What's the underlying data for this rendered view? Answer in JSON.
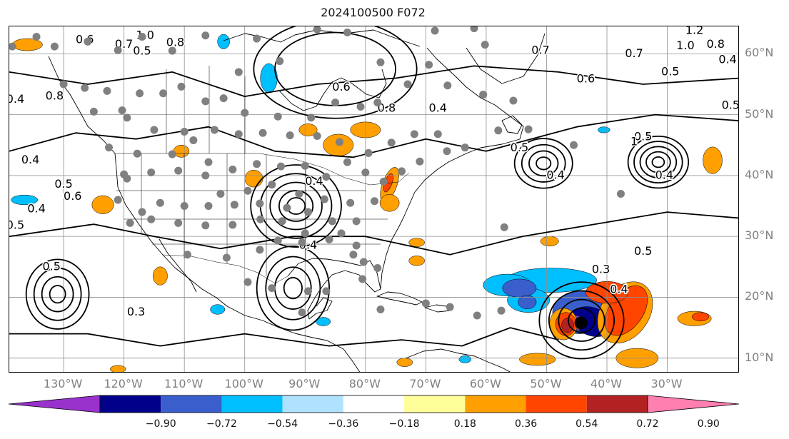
{
  "title": "2024100500 F072",
  "map": {
    "lon_range": [
      -139,
      -18
    ],
    "lat_range": [
      7.5,
      64.5
    ],
    "lon_ticks": [
      {
        "lon": -130,
        "label": "130°W"
      },
      {
        "lon": -120,
        "label": "120°W"
      },
      {
        "lon": -110,
        "label": "110°W"
      },
      {
        "lon": -100,
        "label": "100°W"
      },
      {
        "lon": -90,
        "label": "90°W"
      },
      {
        "lon": -80,
        "label": "80°W"
      },
      {
        "lon": -70,
        "label": "70°W"
      },
      {
        "lon": -60,
        "label": "60°W"
      },
      {
        "lon": -50,
        "label": "50°W"
      },
      {
        "lon": -40,
        "label": "40°W"
      },
      {
        "lon": -30,
        "label": "30°W"
      }
    ],
    "lat_ticks": [
      {
        "lat": 60,
        "label": "60°N"
      },
      {
        "lat": 50,
        "label": "50°N"
      },
      {
        "lat": 40,
        "label": "40°N"
      },
      {
        "lat": 30,
        "label": "30°N"
      },
      {
        "lat": 20,
        "label": "20°N"
      },
      {
        "lat": 10,
        "label": "10°N"
      }
    ],
    "gridlines": true,
    "storm_center": {
      "lon": -44.3,
      "lat": 15.8,
      "color": "#000000"
    },
    "station_color": "#808080",
    "stations": [
      [
        -138.5,
        61.2
      ],
      [
        -134.5,
        62.8
      ],
      [
        -131.5,
        61.2
      ],
      [
        -126.0,
        62.0
      ],
      [
        -121.0,
        60.6
      ],
      [
        -117.0,
        62.8
      ],
      [
        -112.0,
        60.5
      ],
      [
        -106.5,
        63.0
      ],
      [
        -101.0,
        57.0
      ],
      [
        -98.0,
        62.5
      ],
      [
        -94.2,
        58.8
      ],
      [
        -88.0,
        64.0
      ],
      [
        -83.0,
        63.5
      ],
      [
        -77.5,
        58.6
      ],
      [
        -69.5,
        58.2
      ],
      [
        -68.5,
        63.8
      ],
      [
        -62.0,
        64.2
      ],
      [
        -60.2,
        61.5
      ],
      [
        -55.5,
        52.3
      ],
      [
        -60.5,
        53.3
      ],
      [
        -66.4,
        54.8
      ],
      [
        -73.0,
        55.0
      ],
      [
        -78.0,
        52.0
      ],
      [
        -80.8,
        51.3
      ],
      [
        -85.0,
        52.0
      ],
      [
        -89.0,
        49.5
      ],
      [
        -94.5,
        49.7
      ],
      [
        -100.0,
        50.3
      ],
      [
        -103.5,
        52.7
      ],
      [
        -106.5,
        52.2
      ],
      [
        -110.5,
        54.6
      ],
      [
        -113.5,
        53.5
      ],
      [
        -117.4,
        53.5
      ],
      [
        -120.3,
        50.7
      ],
      [
        -122.8,
        53.9
      ],
      [
        -126.5,
        54.4
      ],
      [
        -130.0,
        55.0
      ],
      [
        -125.0,
        50.5
      ],
      [
        -119.5,
        49.5
      ],
      [
        -115.0,
        47.5
      ],
      [
        -110.0,
        47.2
      ],
      [
        -105.0,
        47.5
      ],
      [
        -101.0,
        46.8
      ],
      [
        -97.0,
        47.0
      ],
      [
        -92.5,
        46.6
      ],
      [
        -88.0,
        46.5
      ],
      [
        -84.3,
        45.5
      ],
      [
        -79.5,
        43.7
      ],
      [
        -75.7,
        45.4
      ],
      [
        -71.9,
        46.8
      ],
      [
        -68.0,
        46.8
      ],
      [
        -66.5,
        44.0
      ],
      [
        -63.5,
        44.6
      ],
      [
        -58.0,
        47.4
      ],
      [
        -53.0,
        47.6
      ],
      [
        -45.5,
        45.0
      ],
      [
        -37.7,
        37.0
      ],
      [
        -57.0,
        31.5
      ],
      [
        -122.5,
        44.6
      ],
      [
        -120.0,
        40.2
      ],
      [
        -117.8,
        43.6
      ],
      [
        -112.0,
        43.5
      ],
      [
        -108.5,
        45.8
      ],
      [
        -106.0,
        42.2
      ],
      [
        -102.0,
        41.0
      ],
      [
        -98.0,
        41.9
      ],
      [
        -94.0,
        41.5
      ],
      [
        -90.0,
        41.6
      ],
      [
        -86.5,
        39.8
      ],
      [
        -83.0,
        42.2
      ],
      [
        -80.0,
        40.5
      ],
      [
        -77.0,
        39.0
      ],
      [
        -74.0,
        40.7
      ],
      [
        -71.0,
        42.3
      ],
      [
        -119.5,
        39.5
      ],
      [
        -115.5,
        40.5
      ],
      [
        -111.0,
        40.8
      ],
      [
        -106.5,
        40.0
      ],
      [
        -104.0,
        37.0
      ],
      [
        -99.5,
        37.5
      ],
      [
        -95.5,
        38.5
      ],
      [
        -91.0,
        37.0
      ],
      [
        -86.8,
        36.1
      ],
      [
        -82.5,
        35.5
      ],
      [
        -78.5,
        35.8
      ],
      [
        -121.0,
        36.0
      ],
      [
        -117.0,
        34.0
      ],
      [
        -114.0,
        35.5
      ],
      [
        -110.0,
        35.0
      ],
      [
        -106.0,
        35.0
      ],
      [
        -101.7,
        35.2
      ],
      [
        -97.5,
        35.4
      ],
      [
        -93.0,
        34.7
      ],
      [
        -89.5,
        34.0
      ],
      [
        -85.5,
        32.5
      ],
      [
        -81.5,
        32.5
      ],
      [
        -119.0,
        32.2
      ],
      [
        -115.5,
        32.8
      ],
      [
        -111.0,
        32.2
      ],
      [
        -106.5,
        31.8
      ],
      [
        -102.0,
        31.9
      ],
      [
        -97.4,
        32.8
      ],
      [
        -93.8,
        32.5
      ],
      [
        -90.0,
        30.5
      ],
      [
        -84.0,
        30.5
      ],
      [
        -81.5,
        28.5
      ],
      [
        -97.5,
        27.8
      ],
      [
        -94.5,
        29.3
      ],
      [
        -90.5,
        29.0
      ],
      [
        -86.0,
        29.5
      ],
      [
        -80.3,
        25.8
      ],
      [
        -82.0,
        27.0
      ],
      [
        -103.0,
        26.5
      ],
      [
        -109.5,
        27.0
      ],
      [
        -99.5,
        22.5
      ],
      [
        -95.5,
        21.5
      ],
      [
        -89.5,
        21.0
      ],
      [
        -78.0,
        24.8
      ],
      [
        -77.5,
        18.0
      ],
      [
        -70.0,
        19.0
      ],
      [
        -66.0,
        18.4
      ],
      [
        -61.5,
        17.0
      ],
      [
        -57.5,
        17.8
      ],
      [
        -80.5,
        23.0
      ],
      [
        -90.5,
        17.5
      ],
      [
        -86.5,
        21.0
      ]
    ],
    "shading": [
      {
        "lon": -49.2,
        "lat": 22.8,
        "rx": 7.5,
        "ry": 2.0,
        "rot": 0,
        "fill": "#00bfff"
      },
      {
        "lon": -56.5,
        "lat": 22.0,
        "rx": 4.0,
        "ry": 1.8,
        "rot": 0,
        "fill": "#00bfff"
      },
      {
        "lon": -53.0,
        "lat": 19.5,
        "rx": 3.5,
        "ry": 2.0,
        "rot": 0,
        "fill": "#00bfff"
      },
      {
        "lon": -54.5,
        "lat": 21.5,
        "rx": 2.8,
        "ry": 1.5,
        "rot": 0,
        "fill": "#3a5fcd"
      },
      {
        "lon": -53.2,
        "lat": 19.2,
        "rx": 1.5,
        "ry": 1.1,
        "rot": 0,
        "fill": "#3a5fcd"
      },
      {
        "lon": -44.5,
        "lat": 17.5,
        "rx": 4.5,
        "ry": 3.5,
        "rot": 0,
        "fill": "#3a5fcd"
      },
      {
        "lon": -42.5,
        "lat": 16.0,
        "rx": 3.5,
        "ry": 2.3,
        "rot": 20,
        "fill": "#00008b"
      },
      {
        "lon": -45.2,
        "lat": 15.8,
        "rx": 1.8,
        "ry": 1.2,
        "rot": 0,
        "fill": "#8b3fd0"
      },
      {
        "lon": -47.2,
        "lat": 15.6,
        "rx": 2.3,
        "ry": 2.6,
        "rot": 0,
        "fill": "#ff9f00"
      },
      {
        "lon": -46.8,
        "lat": 15.6,
        "rx": 1.7,
        "ry": 1.9,
        "rot": 0,
        "fill": "#ff4500"
      },
      {
        "lon": -46.5,
        "lat": 15.4,
        "rx": 1.0,
        "ry": 1.2,
        "rot": 0,
        "fill": "#b22222"
      },
      {
        "lon": -37.0,
        "lat": 17.5,
        "rx": 4.0,
        "ry": 5.5,
        "rot": 35,
        "fill": "#ff9f00"
      },
      {
        "lon": -36.8,
        "lat": 17.8,
        "rx": 2.8,
        "ry": 4.6,
        "rot": 35,
        "fill": "#ff4500"
      },
      {
        "lon": -40.0,
        "lat": 20.8,
        "rx": 3.5,
        "ry": 1.8,
        "rot": 0,
        "fill": "#ff4500"
      },
      {
        "lon": -35.0,
        "lat": 10.0,
        "rx": 3.5,
        "ry": 1.6,
        "rot": 0,
        "fill": "#ff9f00"
      },
      {
        "lon": -51.5,
        "lat": 9.8,
        "rx": 3.0,
        "ry": 1.0,
        "rot": 0,
        "fill": "#ff9f00"
      },
      {
        "lon": -25.5,
        "lat": 16.5,
        "rx": 2.8,
        "ry": 1.2,
        "rot": 0,
        "fill": "#ff9f00"
      },
      {
        "lon": -24.5,
        "lat": 16.8,
        "rx": 1.4,
        "ry": 0.7,
        "rot": 0,
        "fill": "#ff4500"
      },
      {
        "lon": -22.5,
        "lat": 42.5,
        "rx": 1.6,
        "ry": 2.2,
        "rot": 0,
        "fill": "#ff9f00"
      },
      {
        "lon": -49.5,
        "lat": 29.2,
        "rx": 1.5,
        "ry": 0.8,
        "rot": 0,
        "fill": "#ff9f00"
      },
      {
        "lon": -71.5,
        "lat": 29.0,
        "rx": 1.3,
        "ry": 0.7,
        "rot": 0,
        "fill": "#ff9f00"
      },
      {
        "lon": -71.5,
        "lat": 26.0,
        "rx": 1.3,
        "ry": 0.8,
        "rot": 0,
        "fill": "#ff9f00"
      },
      {
        "lon": -80.0,
        "lat": 47.5,
        "rx": 2.5,
        "ry": 1.3,
        "rot": 0,
        "fill": "#ff9f00"
      },
      {
        "lon": -84.5,
        "lat": 45.0,
        "rx": 2.5,
        "ry": 1.8,
        "rot": 0,
        "fill": "#ff9f00"
      },
      {
        "lon": -89.5,
        "lat": 47.5,
        "rx": 1.5,
        "ry": 1.0,
        "rot": 0,
        "fill": "#ff9f00"
      },
      {
        "lon": -76.0,
        "lat": 38.5,
        "rx": 1.2,
        "ry": 3.0,
        "rot": 20,
        "fill": "#ff9f00"
      },
      {
        "lon": -76.2,
        "lat": 38.8,
        "rx": 0.6,
        "ry": 1.6,
        "rot": 20,
        "fill": "#ff4500"
      },
      {
        "lon": -76.0,
        "lat": 35.5,
        "rx": 1.6,
        "ry": 1.4,
        "rot": 0,
        "fill": "#ff9f00"
      },
      {
        "lon": -98.5,
        "lat": 39.5,
        "rx": 1.5,
        "ry": 1.4,
        "rot": 0,
        "fill": "#ff9f00"
      },
      {
        "lon": -110.5,
        "lat": 44.0,
        "rx": 1.3,
        "ry": 1.0,
        "rot": 0,
        "fill": "#ff9f00"
      },
      {
        "lon": -123.5,
        "lat": 35.2,
        "rx": 1.8,
        "ry": 1.5,
        "rot": 0,
        "fill": "#ff9f00"
      },
      {
        "lon": -114.0,
        "lat": 23.5,
        "rx": 1.2,
        "ry": 1.5,
        "rot": 0,
        "fill": "#ff9f00"
      },
      {
        "lon": -136.0,
        "lat": 61.5,
        "rx": 2.5,
        "ry": 1.0,
        "rot": 0,
        "fill": "#ff9f00"
      },
      {
        "lon": -121.0,
        "lat": 8.2,
        "rx": 1.3,
        "ry": 0.6,
        "rot": 0,
        "fill": "#ff9f00"
      },
      {
        "lon": -73.5,
        "lat": 9.3,
        "rx": 1.3,
        "ry": 0.7,
        "rot": 0,
        "fill": "#ff9f00"
      },
      {
        "lon": -96.0,
        "lat": 56.0,
        "rx": 1.4,
        "ry": 2.4,
        "rot": 0,
        "fill": "#00bfff"
      },
      {
        "lon": -103.5,
        "lat": 62.0,
        "rx": 1.0,
        "ry": 1.2,
        "rot": 0,
        "fill": "#00bfff"
      },
      {
        "lon": -136.5,
        "lat": 36.0,
        "rx": 2.2,
        "ry": 0.8,
        "rot": 0,
        "fill": "#00bfff"
      },
      {
        "lon": -63.5,
        "lat": 9.8,
        "rx": 1.0,
        "ry": 0.6,
        "rot": 0,
        "fill": "#00bfff"
      },
      {
        "lon": -104.5,
        "lat": 18.0,
        "rx": 1.2,
        "ry": 0.8,
        "rot": 0,
        "fill": "#00bfff"
      },
      {
        "lon": -87.0,
        "lat": 16.0,
        "rx": 1.2,
        "ry": 0.7,
        "rot": 0,
        "fill": "#00bfff"
      },
      {
        "lon": -40.5,
        "lat": 47.5,
        "rx": 1.0,
        "ry": 0.5,
        "rot": 0,
        "fill": "#00bfff"
      }
    ],
    "contours": [
      {
        "lon": -44.2,
        "lat": 16.2,
        "radii_deg": [
          2.2,
          3.8,
          5.4,
          7.0
        ],
        "aspect": 0.9
      },
      {
        "lon": -91.5,
        "lat": 35.0,
        "radii_deg": [
          1.5,
          2.8,
          4.3,
          5.9,
          7.5
        ],
        "aspect": 0.9
      },
      {
        "lon": -92.0,
        "lat": 21.5,
        "radii_deg": [
          1.5,
          3.0,
          4.5,
          6.0
        ],
        "aspect": 1.15
      },
      {
        "lon": -131.0,
        "lat": 20.5,
        "radii_deg": [
          1.3,
          2.6,
          3.9,
          5.2
        ],
        "aspect": 1.1
      },
      {
        "lon": -50.5,
        "lat": 42.0,
        "radii_deg": [
          1.2,
          2.4,
          3.6,
          4.8
        ],
        "aspect": 0.85
      },
      {
        "lon": -31.5,
        "lat": 42.2,
        "radii_deg": [
          1.0,
          2.0,
          3.0,
          4.0,
          5.0
        ],
        "aspect": 0.85
      },
      {
        "lon": -85.0,
        "lat": 57.5,
        "radii_deg": [
          10.0,
          13.5
        ],
        "aspect": 0.6
      }
    ],
    "contour_labels": [
      {
        "lon": -116.5,
        "lat": 63.0,
        "text": "1.0"
      },
      {
        "lon": -120.0,
        "lat": 61.5,
        "text": "0.7"
      },
      {
        "lon": -111.5,
        "lat": 61.8,
        "text": "0.8"
      },
      {
        "lon": -117.0,
        "lat": 60.4,
        "text": "0.5"
      },
      {
        "lon": -126.5,
        "lat": 62.3,
        "text": "0.6"
      },
      {
        "lon": -138.0,
        "lat": 52.5,
        "text": "0.4"
      },
      {
        "lon": -131.5,
        "lat": 53.0,
        "text": "0.8"
      },
      {
        "lon": -135.5,
        "lat": 42.5,
        "text": "0.4"
      },
      {
        "lon": -130.0,
        "lat": 38.5,
        "text": "0.5"
      },
      {
        "lon": -134.5,
        "lat": 34.5,
        "text": "0.4"
      },
      {
        "lon": -138.0,
        "lat": 31.8,
        "text": "0.5"
      },
      {
        "lon": -128.5,
        "lat": 36.5,
        "text": "0.6"
      },
      {
        "lon": -132.0,
        "lat": 25.0,
        "text": "0.5"
      },
      {
        "lon": -118.0,
        "lat": 17.5,
        "text": "0.3"
      },
      {
        "lon": -88.5,
        "lat": 39.0,
        "text": "0.4"
      },
      {
        "lon": -89.5,
        "lat": 28.5,
        "text": "0.4"
      },
      {
        "lon": -84.0,
        "lat": 54.5,
        "text": "0.6"
      },
      {
        "lon": -76.5,
        "lat": 51.0,
        "text": "0.8"
      },
      {
        "lon": -68.0,
        "lat": 51.0,
        "text": "0.4"
      },
      {
        "lon": -51.0,
        "lat": 60.5,
        "text": "0.7"
      },
      {
        "lon": -43.5,
        "lat": 55.8,
        "text": "0.6"
      },
      {
        "lon": -35.5,
        "lat": 60.0,
        "text": "0.7"
      },
      {
        "lon": -27.0,
        "lat": 61.3,
        "text": "1.0"
      },
      {
        "lon": -25.5,
        "lat": 63.8,
        "text": "1.2"
      },
      {
        "lon": -22.0,
        "lat": 61.5,
        "text": "0.8"
      },
      {
        "lon": -20.0,
        "lat": 59.0,
        "text": "0.4"
      },
      {
        "lon": -29.5,
        "lat": 57.0,
        "text": "0.5"
      },
      {
        "lon": -19.5,
        "lat": 51.5,
        "text": "0.5"
      },
      {
        "lon": -34.0,
        "lat": 46.3,
        "text": "0.5"
      },
      {
        "lon": -35.5,
        "lat": 45.5,
        "text": "1"
      },
      {
        "lon": -48.5,
        "lat": 40.0,
        "text": "0.4"
      },
      {
        "lon": -54.5,
        "lat": 44.5,
        "text": "0.5"
      },
      {
        "lon": -30.5,
        "lat": 40.0,
        "text": "0.4"
      },
      {
        "lon": -41.0,
        "lat": 24.5,
        "text": "0.3"
      },
      {
        "lon": -38.0,
        "lat": 21.2,
        "text": "0.4"
      },
      {
        "lon": -34.0,
        "lat": 27.5,
        "text": "0.5"
      }
    ],
    "colors": {
      "contour": "#000000",
      "grid": "#8f8f8f",
      "coast": "#000000",
      "border": "#000000"
    }
  },
  "colorbar": {
    "colors": [
      "#9932cc",
      "#00008b",
      "#3a5fcd",
      "#00bfff",
      "#b0e2ff",
      "#ffffff",
      "#ffff99",
      "#ff9f00",
      "#ff4500",
      "#b22222",
      "#ff7fb0"
    ],
    "labels": [
      "−0.90",
      "−0.72",
      "−0.54",
      "−0.36",
      "−0.18",
      "0.18",
      "0.36",
      "0.54",
      "0.72",
      "0.90"
    ]
  }
}
